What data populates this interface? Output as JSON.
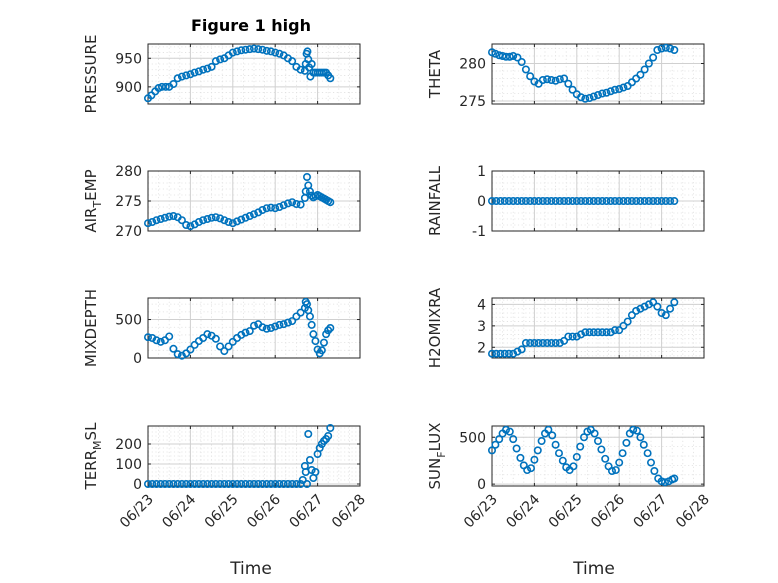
{
  "figure": {
    "title": "Figure 1 high",
    "xlabel": "Time",
    "x_ticks": [
      "06/23",
      "06/24",
      "06/25",
      "06/26",
      "06/27",
      "06/28"
    ]
  },
  "style": {
    "marker_color": "#0072BD",
    "axis_color": "#262626",
    "grid_color": "#dfdfdf"
  },
  "chart_data": [
    {
      "type": "scatter",
      "ylabel": "PRESSURE",
      "ylim": [
        870,
        975
      ],
      "yticks": [
        900,
        950
      ],
      "x_unit": "days since 06/23",
      "x": [
        0.0,
        0.08,
        0.17,
        0.25,
        0.33,
        0.42,
        0.5,
        0.6,
        0.7,
        0.8,
        0.9,
        1.0,
        1.1,
        1.2,
        1.3,
        1.4,
        1.5,
        1.6,
        1.7,
        1.8,
        1.9,
        2.0,
        2.1,
        2.2,
        2.3,
        2.4,
        2.5,
        2.6,
        2.7,
        2.8,
        2.9,
        3.0,
        3.1,
        3.2,
        3.3,
        3.4,
        3.5,
        3.6,
        3.7,
        3.72,
        3.74,
        3.76,
        3.78,
        3.8,
        3.83,
        3.86,
        3.9,
        3.95,
        4.0,
        4.05,
        4.1,
        4.15,
        4.2,
        4.25,
        4.3
      ],
      "y": [
        880,
        885,
        892,
        898,
        900,
        900,
        900,
        905,
        915,
        918,
        920,
        922,
        925,
        927,
        930,
        932,
        935,
        945,
        948,
        950,
        955,
        960,
        962,
        964,
        965,
        966,
        967,
        966,
        965,
        963,
        962,
        960,
        958,
        955,
        950,
        945,
        935,
        930,
        928,
        940,
        958,
        962,
        948,
        934,
        918,
        940,
        925,
        925,
        925,
        925,
        925,
        925,
        925,
        920,
        915
      ]
    },
    {
      "type": "scatter",
      "ylabel": "THETA",
      "ylim": [
        274.6,
        282.6
      ],
      "yticks": [
        275,
        280
      ],
      "x_unit": "days since 06/23",
      "x": [
        0.0,
        0.08,
        0.17,
        0.25,
        0.33,
        0.42,
        0.5,
        0.6,
        0.7,
        0.8,
        0.9,
        1.0,
        1.1,
        1.2,
        1.3,
        1.4,
        1.5,
        1.6,
        1.7,
        1.8,
        1.9,
        2.0,
        2.1,
        2.2,
        2.3,
        2.4,
        2.5,
        2.6,
        2.7,
        2.8,
        2.9,
        3.0,
        3.1,
        3.2,
        3.3,
        3.4,
        3.5,
        3.6,
        3.7,
        3.8,
        3.9,
        4.0,
        4.1,
        4.2,
        4.3
      ],
      "y": [
        281.5,
        281.3,
        281.1,
        281.0,
        280.9,
        280.9,
        281.0,
        280.8,
        280.2,
        279.2,
        278.3,
        277.6,
        277.3,
        277.8,
        277.9,
        277.8,
        277.7,
        277.9,
        278.0,
        277.3,
        276.5,
        275.9,
        275.5,
        275.3,
        275.4,
        275.6,
        275.8,
        276.0,
        276.1,
        276.3,
        276.5,
        276.6,
        276.8,
        277.0,
        277.5,
        278.0,
        278.5,
        279.2,
        280.0,
        280.8,
        281.8,
        282.0,
        282.1,
        282.0,
        281.8
      ]
    },
    {
      "type": "scatter",
      "ylabel": "AIR_TEMP",
      "ylim": [
        270,
        280
      ],
      "yticks": [
        270,
        275,
        280
      ],
      "x_unit": "days since 06/23",
      "x": [
        0.0,
        0.1,
        0.2,
        0.3,
        0.4,
        0.5,
        0.6,
        0.7,
        0.8,
        0.9,
        1.0,
        1.1,
        1.2,
        1.3,
        1.4,
        1.5,
        1.6,
        1.7,
        1.8,
        1.9,
        2.0,
        2.1,
        2.2,
        2.3,
        2.4,
        2.5,
        2.6,
        2.7,
        2.8,
        2.9,
        3.0,
        3.1,
        3.2,
        3.3,
        3.4,
        3.5,
        3.6,
        3.7,
        3.72,
        3.75,
        3.78,
        3.82,
        3.86,
        3.9,
        3.95,
        4.0,
        4.05,
        4.1,
        4.15,
        4.2,
        4.25,
        4.3
      ],
      "y": [
        271.3,
        271.5,
        271.8,
        272.0,
        272.2,
        272.4,
        272.5,
        272.3,
        271.8,
        271.0,
        270.8,
        271.1,
        271.5,
        271.8,
        272.0,
        272.2,
        272.3,
        272.1,
        271.8,
        271.5,
        271.3,
        271.6,
        271.9,
        272.2,
        272.5,
        272.8,
        273.1,
        273.5,
        273.8,
        273.9,
        273.8,
        274.0,
        274.3,
        274.6,
        274.8,
        274.5,
        274.4,
        275.5,
        276.6,
        279.0,
        277.6,
        276.6,
        275.9,
        275.6,
        275.8,
        276.0,
        275.8,
        275.6,
        275.4,
        275.2,
        275.0,
        274.8
      ]
    },
    {
      "type": "scatter",
      "ylabel": "RAINFALL",
      "ylim": [
        -1,
        1
      ],
      "yticks": [
        -1,
        0,
        1
      ],
      "x_unit": "days since 06/23",
      "x": [
        0.0,
        0.1,
        0.2,
        0.3,
        0.4,
        0.5,
        0.6,
        0.7,
        0.8,
        0.9,
        1.0,
        1.1,
        1.2,
        1.3,
        1.4,
        1.5,
        1.6,
        1.7,
        1.8,
        1.9,
        2.0,
        2.1,
        2.2,
        2.3,
        2.4,
        2.5,
        2.6,
        2.7,
        2.8,
        2.9,
        3.0,
        3.1,
        3.2,
        3.3,
        3.4,
        3.5,
        3.6,
        3.7,
        3.8,
        3.9,
        4.0,
        4.1,
        4.2,
        4.3
      ],
      "y": [
        0,
        0,
        0,
        0,
        0,
        0,
        0,
        0,
        0,
        0,
        0,
        0,
        0,
        0,
        0,
        0,
        0,
        0,
        0,
        0,
        0,
        0,
        0,
        0,
        0,
        0,
        0,
        0,
        0,
        0,
        0,
        0,
        0,
        0,
        0,
        0,
        0,
        0,
        0,
        0,
        0,
        0,
        0,
        0
      ]
    },
    {
      "type": "scatter",
      "ylabel": "MIXDEPTH",
      "ylim": [
        0,
        780
      ],
      "yticks": [
        0,
        500
      ],
      "x_unit": "days since 06/23",
      "x": [
        0.0,
        0.1,
        0.2,
        0.3,
        0.4,
        0.5,
        0.6,
        0.7,
        0.8,
        0.9,
        1.0,
        1.1,
        1.2,
        1.3,
        1.4,
        1.5,
        1.6,
        1.7,
        1.8,
        1.9,
        2.0,
        2.1,
        2.2,
        2.3,
        2.4,
        2.5,
        2.6,
        2.7,
        2.8,
        2.9,
        3.0,
        3.1,
        3.2,
        3.3,
        3.4,
        3.5,
        3.6,
        3.7,
        3.72,
        3.75,
        3.78,
        3.82,
        3.86,
        3.9,
        3.95,
        4.0,
        4.05,
        4.1,
        4.15,
        4.2,
        4.25,
        4.3
      ],
      "y": [
        270,
        260,
        230,
        210,
        230,
        280,
        120,
        50,
        30,
        60,
        110,
        170,
        220,
        260,
        310,
        290,
        250,
        150,
        90,
        150,
        210,
        260,
        300,
        330,
        350,
        420,
        440,
        400,
        380,
        390,
        410,
        430,
        440,
        460,
        480,
        540,
        590,
        650,
        730,
        700,
        620,
        540,
        430,
        310,
        220,
        110,
        60,
        100,
        200,
        310,
        360,
        390
      ]
    },
    {
      "type": "scatter",
      "ylabel": "H2OMIXRA",
      "ylim": [
        1.5,
        4.3
      ],
      "yticks": [
        2,
        3,
        4
      ],
      "x_unit": "days since 06/23",
      "x": [
        0.0,
        0.1,
        0.2,
        0.3,
        0.4,
        0.5,
        0.6,
        0.7,
        0.8,
        0.9,
        1.0,
        1.1,
        1.2,
        1.3,
        1.4,
        1.5,
        1.6,
        1.7,
        1.8,
        1.9,
        2.0,
        2.1,
        2.2,
        2.3,
        2.4,
        2.5,
        2.6,
        2.7,
        2.8,
        2.9,
        3.0,
        3.1,
        3.2,
        3.3,
        3.4,
        3.5,
        3.6,
        3.7,
        3.8,
        3.9,
        4.0,
        4.1,
        4.2,
        4.3
      ],
      "y": [
        1.7,
        1.7,
        1.7,
        1.7,
        1.7,
        1.7,
        1.8,
        1.9,
        2.2,
        2.2,
        2.2,
        2.2,
        2.2,
        2.2,
        2.2,
        2.2,
        2.2,
        2.3,
        2.5,
        2.5,
        2.5,
        2.6,
        2.7,
        2.7,
        2.7,
        2.7,
        2.7,
        2.7,
        2.7,
        2.8,
        2.8,
        3.0,
        3.2,
        3.5,
        3.7,
        3.8,
        3.9,
        4.0,
        4.1,
        3.9,
        3.6,
        3.5,
        3.8,
        4.1
      ]
    },
    {
      "type": "scatter",
      "ylabel": "TERR_MSL",
      "ylim": [
        -10,
        290
      ],
      "yticks": [
        0,
        100,
        200
      ],
      "x_unit": "days since 06/23",
      "x": [
        0.0,
        0.1,
        0.2,
        0.3,
        0.4,
        0.5,
        0.6,
        0.7,
        0.8,
        0.9,
        1.0,
        1.1,
        1.2,
        1.3,
        1.4,
        1.5,
        1.6,
        1.7,
        1.8,
        1.9,
        2.0,
        2.1,
        2.2,
        2.3,
        2.4,
        2.5,
        2.6,
        2.7,
        2.8,
        2.9,
        3.0,
        3.1,
        3.2,
        3.3,
        3.4,
        3.5,
        3.6,
        3.65,
        3.7,
        3.72,
        3.75,
        3.78,
        3.82,
        3.86,
        3.9,
        3.95,
        4.0,
        4.05,
        4.1,
        4.15,
        4.2,
        4.25,
        4.3
      ],
      "y": [
        0,
        0,
        0,
        0,
        0,
        0,
        0,
        0,
        0,
        0,
        0,
        0,
        0,
        0,
        0,
        0,
        0,
        0,
        0,
        0,
        0,
        0,
        0,
        0,
        0,
        0,
        0,
        0,
        0,
        0,
        0,
        0,
        0,
        0,
        0,
        0,
        0,
        20,
        90,
        60,
        0,
        250,
        120,
        70,
        30,
        60,
        150,
        180,
        200,
        215,
        225,
        240,
        280
      ]
    },
    {
      "type": "scatter",
      "ylabel": "SUN_FLUX",
      "ylim": [
        -20,
        620
      ],
      "yticks": [
        0,
        500
      ],
      "x_unit": "days since 06/23",
      "x": [
        0.0,
        0.08,
        0.17,
        0.25,
        0.33,
        0.42,
        0.5,
        0.58,
        0.67,
        0.75,
        0.83,
        0.92,
        1.0,
        1.08,
        1.17,
        1.25,
        1.33,
        1.42,
        1.5,
        1.58,
        1.67,
        1.75,
        1.83,
        1.92,
        2.0,
        2.08,
        2.17,
        2.25,
        2.33,
        2.42,
        2.5,
        2.58,
        2.67,
        2.75,
        2.83,
        2.92,
        3.0,
        3.08,
        3.17,
        3.25,
        3.33,
        3.42,
        3.5,
        3.58,
        3.67,
        3.75,
        3.83,
        3.92,
        4.0,
        4.08,
        4.17,
        4.25,
        4.3
      ],
      "y": [
        360,
        420,
        480,
        540,
        580,
        560,
        480,
        380,
        280,
        200,
        150,
        170,
        260,
        360,
        460,
        540,
        580,
        520,
        420,
        330,
        250,
        180,
        150,
        190,
        290,
        400,
        500,
        560,
        580,
        540,
        460,
        370,
        270,
        190,
        140,
        150,
        230,
        330,
        440,
        540,
        580,
        570,
        500,
        420,
        330,
        230,
        140,
        60,
        30,
        20,
        30,
        50,
        60
      ]
    }
  ]
}
